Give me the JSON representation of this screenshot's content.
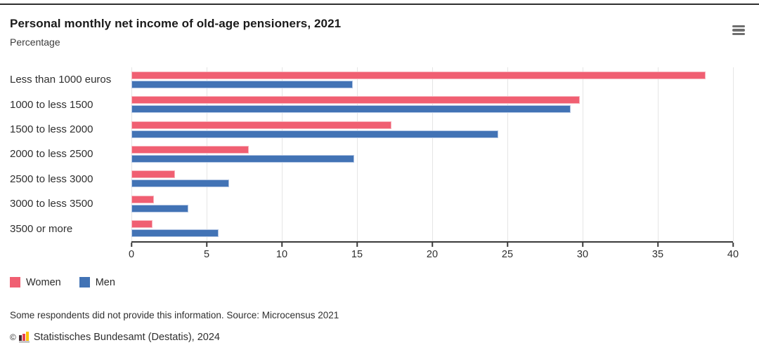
{
  "header": {
    "title": "Personal monthly net income of old-age pensioners, 2021",
    "subtitle": "Percentage"
  },
  "chart_data": {
    "type": "bar",
    "orientation": "horizontal",
    "title": "Personal monthly net income of old-age pensioners, 2021",
    "ylabel": "",
    "xlabel": "Percentage",
    "categories": [
      "Less than 1000 euros",
      "1000 to less 1500",
      "1500 to less 2000",
      "2000 to less 2500",
      "2500 to less 3000",
      "3000 to less 3500",
      "3500 or more"
    ],
    "series": [
      {
        "name": "Women",
        "color": "#f05f72",
        "border_color": "#f7b3bc",
        "values": [
          38.2,
          29.8,
          17.3,
          7.8,
          2.9,
          1.5,
          1.4
        ]
      },
      {
        "name": "Men",
        "color": "#4273b5",
        "border_color": "#b3c6e4",
        "values": [
          14.7,
          29.2,
          24.4,
          14.8,
          6.5,
          3.8,
          5.8
        ]
      }
    ],
    "xlim": [
      0,
      40
    ],
    "x_ticks": [
      0,
      5,
      10,
      15,
      20,
      25,
      30,
      35,
      40
    ],
    "grid": true,
    "legend_position": "bottom"
  },
  "legend": {
    "items": [
      {
        "label": "Women",
        "color": "#f05f72"
      },
      {
        "label": "Men",
        "color": "#4273b5"
      }
    ]
  },
  "footer": {
    "note": "Some respondents did not provide this information. Source: Microcensus 2021",
    "copyright_symbol": "©",
    "copyright_text": "Statistisches Bundesamt (Destatis), 2024"
  },
  "icons": {
    "menu": "hamburger-menu-icon",
    "logo": "destatis-logo-icon"
  }
}
